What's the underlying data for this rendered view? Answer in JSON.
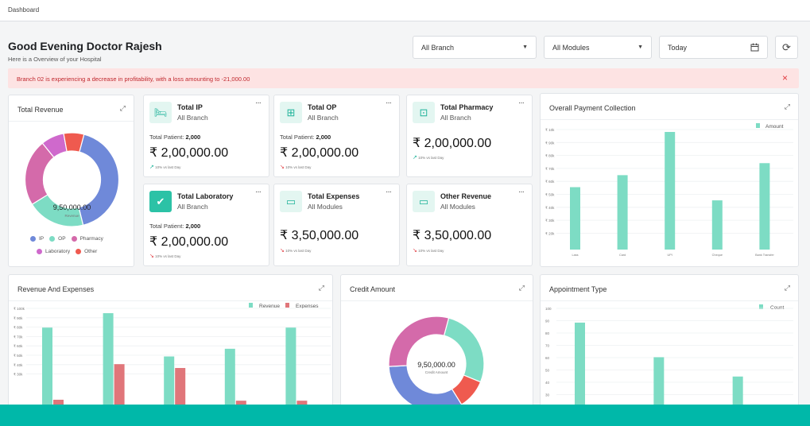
{
  "topbar": {
    "breadcrumb": "Dashboard"
  },
  "header": {
    "greeting": "Good Evening Doctor Rajesh",
    "subtitle": "Here is a Overview of your Hospital"
  },
  "filters": {
    "branch": "All Branch",
    "modules": "All Modules",
    "date": "Today"
  },
  "alert": {
    "message": "Branch 02 is experiencing a decrease in profitability, with a loss amounting to -21,000.00"
  },
  "total_revenue": {
    "title": "Total Revenue",
    "center_value": "9,50,000.00",
    "center_label": "Revenue",
    "legend": [
      "IP",
      "OP",
      "Pharmacy",
      "Laboratory",
      "Other"
    ]
  },
  "stats": [
    {
      "name": "Total IP",
      "scope": "All Branch",
      "patients_label": "Total Patient:",
      "patients": "2,000",
      "amount": "₹ 2,00,000.00",
      "trend": "10% vs last Day",
      "icon": "bed-icon"
    },
    {
      "name": "Total OP",
      "scope": "All Branch",
      "patients_label": "Total Patient:",
      "patients": "2,000",
      "amount": "₹ 2,00,000.00",
      "trend": "10% vs last Day",
      "icon": "medical-box-icon"
    },
    {
      "name": "Total Pharmacy",
      "scope": "All Branch",
      "amount": "₹ 2,00,000.00",
      "trend": "10% vs last Day",
      "icon": "pharmacy-icon"
    },
    {
      "name": "Total Laboratory",
      "scope": "All Branch",
      "patients_label": "Total Patient:",
      "patients": "2,000",
      "amount": "₹ 2,00,000.00",
      "trend": "10% vs last Day",
      "icon": "check-circle-icon"
    },
    {
      "name": "Total Expenses",
      "scope": "All Modules",
      "amount": "₹ 3,50,000.00",
      "trend": "10% vs last Day",
      "icon": "cash-icon"
    },
    {
      "name": "Other Revenue",
      "scope": "All Modules",
      "amount": "₹ 3,50,000.00",
      "trend": "10% vs last Day",
      "icon": "cash-icon"
    }
  ],
  "charts": {
    "payment": {
      "title": "Overall Payment Collection",
      "legend": "Amount"
    },
    "revexp": {
      "title": "Revenue And Expenses",
      "legend_a": "Revenue",
      "legend_b": "Expenses"
    },
    "credit": {
      "title": "Credit Amount",
      "center_value": "9,50,000.00",
      "center_label": "Credit Amount"
    },
    "appointment": {
      "title": "Appointment Type",
      "legend": "Count"
    }
  },
  "chart_data": [
    {
      "type": "pie",
      "chart": "total_revenue",
      "categories": [
        "IP",
        "OP",
        "Pharmacy",
        "Laboratory",
        "Other"
      ],
      "values": [
        42,
        20,
        23,
        8,
        7
      ],
      "colors": [
        "#6f89d9",
        "#7ddcc4",
        "#d46aaa",
        "#cf69cc",
        "#ef5a4f"
      ]
    },
    {
      "type": "bar",
      "chart": "payment",
      "categories": [
        "Lass",
        "Card",
        "UPI",
        "Cheque",
        "Bank Transfer"
      ],
      "series": [
        {
          "name": "Amount",
          "values": [
            52,
            62,
            98,
            41,
            72
          ]
        }
      ],
      "yticks": [
        "₹ 10k",
        "₹ 90k",
        "₹ 80k",
        "₹ 70k",
        "₹ 60k",
        "₹ 50k",
        "₹ 40k",
        "₹ 30k",
        "₹ 20k"
      ],
      "ylim": [
        0,
        100
      ],
      "color": "#7ddcc4"
    },
    {
      "type": "bar",
      "chart": "revexp",
      "series": [
        {
          "name": "Revenue",
          "values": [
            80,
            95,
            50,
            58,
            80
          ]
        },
        {
          "name": "Expenses",
          "values": [
            5,
            42,
            38,
            4,
            4
          ]
        }
      ],
      "yticks": [
        "₹ 100k",
        "₹ 90k",
        "₹ 80k",
        "₹ 70k",
        "₹ 60k",
        "₹ 50k",
        "₹ 40k",
        "₹ 30k"
      ],
      "colors": [
        "#7ddcc4",
        "#e0767a"
      ]
    },
    {
      "type": "pie",
      "chart": "credit",
      "values": [
        27,
        10,
        33,
        30
      ],
      "colors": [
        "#7ddcc4",
        "#ef5a4f",
        "#6f89d9",
        "#d46aaa"
      ]
    },
    {
      "type": "bar",
      "chart": "appointment",
      "series": [
        {
          "name": "Count",
          "values": [
            86,
            52,
            33
          ]
        }
      ],
      "yticks": [
        "100",
        "90",
        "80",
        "70",
        "60",
        "50",
        "40",
        "30"
      ],
      "ylim": [
        0,
        100
      ],
      "color": "#7ddcc4"
    }
  ]
}
